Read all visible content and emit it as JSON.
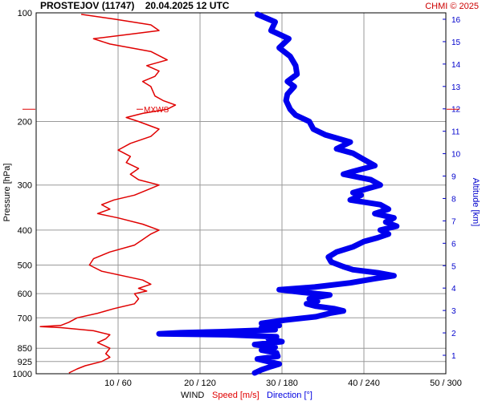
{
  "header": {
    "title": "PROSTEJOV (11747)    20.04.2025 12 UTC",
    "copyright": "CHMI © 2025"
  },
  "chart_data": {
    "type": "line",
    "y_axis": {
      "label": "Pressure [hPa]",
      "scale": "log",
      "range": [
        1000,
        100
      ],
      "ticks": [
        100,
        200,
        300,
        400,
        500,
        600,
        700,
        850,
        925,
        1000
      ],
      "tick_labels": [
        "100",
        "200",
        "300",
        "400",
        "500",
        "600",
        "700",
        "850",
        "925",
        "1000"
      ]
    },
    "right_axis": {
      "label": "Altitude [km]",
      "ticks": [
        1,
        2,
        3,
        4,
        5,
        6,
        7,
        8,
        9,
        10,
        11,
        12,
        13,
        14,
        15,
        16
      ],
      "tick_labels": [
        "1",
        "2",
        "3",
        "4",
        "5",
        "6",
        "7",
        "8",
        "9",
        "10",
        "11",
        "12",
        "13",
        "14",
        "15",
        "16"
      ]
    },
    "x_axis": {
      "title": "WIND",
      "speed_label": "Speed [m/s]",
      "direction_label": "Direction [°]",
      "speed_range": [
        0,
        50
      ],
      "direction_range": [
        0,
        300
      ],
      "tick_labels": [
        "10 / 60",
        "20 / 120",
        "30 / 180",
        "40 / 240",
        "50 / 300"
      ]
    },
    "grid": true,
    "mxws": {
      "label": "MXWS",
      "pressure": 185
    },
    "series": [
      {
        "name": "Speed [m/s]",
        "color": "#e00000",
        "points": [
          [
            995,
            4
          ],
          [
            970,
            5
          ],
          [
            950,
            6
          ],
          [
            925,
            8
          ],
          [
            900,
            9
          ],
          [
            880,
            8.5
          ],
          [
            850,
            9
          ],
          [
            820,
            7.5
          ],
          [
            800,
            8.5
          ],
          [
            780,
            9
          ],
          [
            760,
            7
          ],
          [
            745,
            3
          ],
          [
            740,
            0.5
          ],
          [
            735,
            3
          ],
          [
            720,
            4
          ],
          [
            700,
            5
          ],
          [
            680,
            7.5
          ],
          [
            660,
            9.5
          ],
          [
            640,
            12
          ],
          [
            620,
            12.5
          ],
          [
            600,
            12
          ],
          [
            590,
            13.5
          ],
          [
            580,
            12.5
          ],
          [
            565,
            14
          ],
          [
            550,
            13
          ],
          [
            520,
            8
          ],
          [
            500,
            6.5
          ],
          [
            480,
            7
          ],
          [
            460,
            9
          ],
          [
            440,
            12
          ],
          [
            425,
            13
          ],
          [
            410,
            14
          ],
          [
            400,
            15
          ],
          [
            385,
            13
          ],
          [
            370,
            10
          ],
          [
            360,
            7.5
          ],
          [
            350,
            9
          ],
          [
            340,
            8
          ],
          [
            330,
            9.5
          ],
          [
            320,
            12
          ],
          [
            310,
            13.5
          ],
          [
            300,
            15
          ],
          [
            290,
            12.5
          ],
          [
            280,
            11.5
          ],
          [
            270,
            12.5
          ],
          [
            260,
            11
          ],
          [
            250,
            11.5
          ],
          [
            240,
            10
          ],
          [
            230,
            11.5
          ],
          [
            220,
            14
          ],
          [
            210,
            15
          ],
          [
            200,
            12.5
          ],
          [
            195,
            11
          ],
          [
            190,
            13
          ],
          [
            185,
            16
          ],
          [
            180,
            17
          ],
          [
            175,
            15.5
          ],
          [
            170,
            14.5
          ],
          [
            160,
            14
          ],
          [
            155,
            13
          ],
          [
            150,
            14.5
          ],
          [
            145,
            15
          ],
          [
            140,
            13.5
          ],
          [
            135,
            16
          ],
          [
            128,
            14
          ],
          [
            122,
            9
          ],
          [
            118,
            7
          ],
          [
            115,
            11
          ],
          [
            112,
            15
          ],
          [
            108,
            14
          ],
          [
            104,
            9.5
          ],
          [
            101,
            5.5
          ]
        ]
      },
      {
        "name": "Direction [°]",
        "color": "#0000e0",
        "points": [
          [
            995,
            160
          ],
          [
            975,
            165
          ],
          [
            955,
            172
          ],
          [
            940,
            178
          ],
          [
            925,
            170
          ],
          [
            910,
            162
          ],
          [
            895,
            177
          ],
          [
            875,
            176
          ],
          [
            860,
            165
          ],
          [
            845,
            175
          ],
          [
            830,
            160
          ],
          [
            815,
            180
          ],
          [
            800,
            170
          ],
          [
            790,
            176
          ],
          [
            780,
            140
          ],
          [
            775,
            90
          ],
          [
            770,
            106
          ],
          [
            765,
            135
          ],
          [
            755,
            175
          ],
          [
            745,
            165
          ],
          [
            735,
            178
          ],
          [
            725,
            165
          ],
          [
            710,
            182
          ],
          [
            695,
            205
          ],
          [
            680,
            215
          ],
          [
            670,
            225
          ],
          [
            660,
            218
          ],
          [
            650,
            205
          ],
          [
            640,
            198
          ],
          [
            630,
            206
          ],
          [
            620,
            200
          ],
          [
            605,
            215
          ],
          [
            595,
            195
          ],
          [
            585,
            178
          ],
          [
            575,
            204
          ],
          [
            560,
            230
          ],
          [
            545,
            248
          ],
          [
            535,
            262
          ],
          [
            525,
            250
          ],
          [
            515,
            232
          ],
          [
            505,
            225
          ],
          [
            490,
            216
          ],
          [
            475,
            214
          ],
          [
            460,
            220
          ],
          [
            445,
            232
          ],
          [
            430,
            240
          ],
          [
            420,
            250
          ],
          [
            410,
            258
          ],
          [
            400,
            252
          ],
          [
            390,
            264
          ],
          [
            380,
            256
          ],
          [
            370,
            262
          ],
          [
            360,
            248
          ],
          [
            350,
            258
          ],
          [
            340,
            252
          ],
          [
            330,
            230
          ],
          [
            320,
            238
          ],
          [
            315,
            232
          ],
          [
            300,
            252
          ],
          [
            290,
            245
          ],
          [
            280,
            225
          ],
          [
            275,
            232
          ],
          [
            265,
            248
          ],
          [
            255,
            240
          ],
          [
            245,
            232
          ],
          [
            238,
            220
          ],
          [
            228,
            230
          ],
          [
            218,
            212
          ],
          [
            210,
            203
          ],
          [
            200,
            200
          ],
          [
            192,
            190
          ],
          [
            185,
            186
          ],
          [
            175,
            183
          ],
          [
            168,
            184
          ],
          [
            160,
            189
          ],
          [
            155,
            184
          ],
          [
            148,
            191
          ],
          [
            140,
            190
          ],
          [
            132,
            186
          ],
          [
            125,
            178
          ],
          [
            118,
            185
          ],
          [
            112,
            172
          ],
          [
            106,
            175
          ],
          [
            101,
            162
          ]
        ]
      }
    ]
  }
}
